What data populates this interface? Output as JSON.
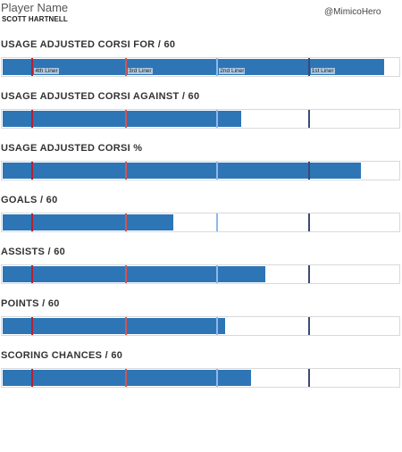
{
  "header": {
    "title": "Player Name",
    "player": "SCOTT HARTNELL",
    "handle": "@MimicoHero"
  },
  "tiers": [
    {
      "label": "4th Liner",
      "color": "#b22234"
    },
    {
      "label": "3rd Liner",
      "color": "#d9534f"
    },
    {
      "label": "2nd Liner",
      "color": "#8fb8e8"
    },
    {
      "label": "1st Liner",
      "color": "#3a4a75"
    }
  ],
  "chart_data": {
    "type": "bar",
    "orientation": "horizontal",
    "percentile_scale": [
      0,
      100
    ],
    "series": [
      {
        "name": "USAGE ADJUSTED CORSI FOR / 60",
        "percentile": 96,
        "tier_markers": [
          7.5,
          31,
          54,
          77
        ]
      },
      {
        "name": "USAGE ADJUSTED CORSI AGAINST / 60",
        "percentile": 60,
        "tier_markers": [
          7.5,
          31,
          54,
          77
        ]
      },
      {
        "name": "USAGE ADJUSTED CORSI %",
        "percentile": 90,
        "tier_markers": [
          7.5,
          31,
          54,
          77
        ]
      },
      {
        "name": "GOALS / 60",
        "percentile": 43,
        "tier_markers": [
          7.5,
          31,
          54,
          77
        ]
      },
      {
        "name": "ASSISTS / 60",
        "percentile": 66,
        "tier_markers": [
          7.5,
          31,
          54,
          77
        ]
      },
      {
        "name": "POINTS / 60",
        "percentile": 56,
        "tier_markers": [
          7.5,
          31,
          54,
          77
        ]
      },
      {
        "name": "SCORING CHANCES / 60",
        "percentile": 62.5,
        "tier_markers": [
          7.5,
          31,
          54,
          77
        ]
      }
    ]
  }
}
